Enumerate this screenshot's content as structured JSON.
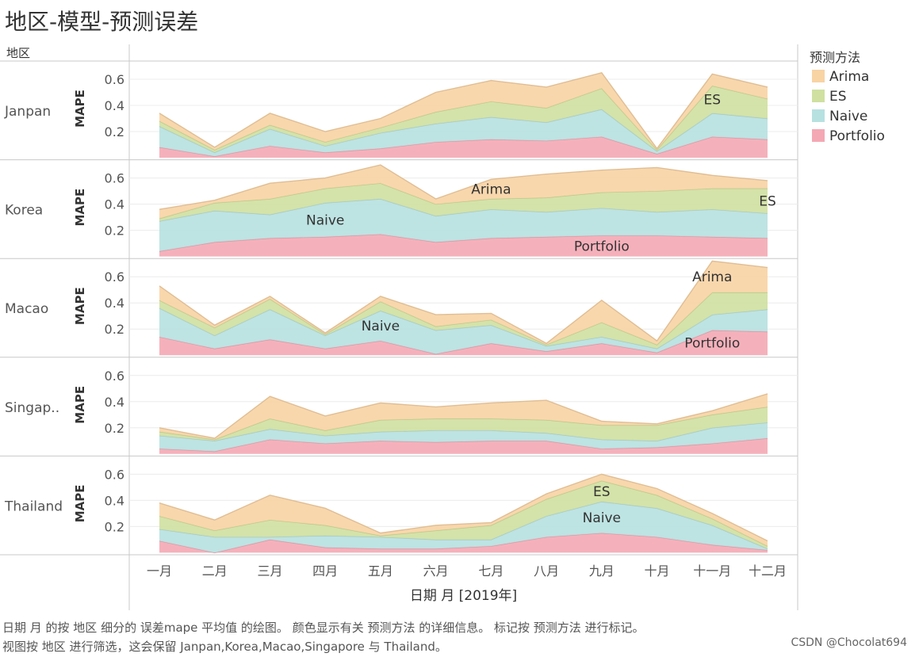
{
  "title": "地区-模型-预测误差",
  "caption": {
    "line1": "日期 月 的按 地区 细分的 误差mape 平均值 的绘图。 颜色显示有关 预测方法 的详细信息。 标记按 预测方法 进行标记。",
    "line2": "视图按 地区 进行筛选，这会保留 Janpan,Korea,Macao,Singapore 与 Thailand。"
  },
  "watermark": "CSDN @Chocolat694",
  "chart_data": {
    "type": "area",
    "stacked": true,
    "row_header": "地区",
    "ylabel": "MAPE",
    "xlabel": "日期 月 [2019年]",
    "ylim": [
      0,
      0.7
    ],
    "yticks": [
      0.2,
      0.4,
      0.6
    ],
    "grid": true,
    "categories": [
      "一月",
      "二月",
      "三月",
      "四月",
      "五月",
      "六月",
      "七月",
      "八月",
      "九月",
      "十月",
      "十一月",
      "十二月"
    ],
    "legend": {
      "title": "预测方法",
      "position": "right",
      "items": [
        {
          "name": "Arima",
          "color": "#f8d3a4"
        },
        {
          "name": "ES",
          "color": "#cfe0a0"
        },
        {
          "name": "Naive",
          "color": "#b7e0e0"
        },
        {
          "name": "Portfolio",
          "color": "#f4a8b4"
        }
      ]
    },
    "panels": [
      {
        "region": "Janpan",
        "series": [
          {
            "name": "Portfolio",
            "values": [
              0.08,
              0.01,
              0.09,
              0.04,
              0.07,
              0.12,
              0.14,
              0.13,
              0.16,
              0.03,
              0.16,
              0.14
            ]
          },
          {
            "name": "Naive",
            "values": [
              0.16,
              0.03,
              0.13,
              0.05,
              0.12,
              0.14,
              0.17,
              0.14,
              0.21,
              0.02,
              0.18,
              0.16
            ]
          },
          {
            "name": "ES",
            "values": [
              0.04,
              0.02,
              0.03,
              0.03,
              0.04,
              0.09,
              0.12,
              0.11,
              0.16,
              0.01,
              0.21,
              0.15
            ]
          },
          {
            "name": "Arima",
            "values": [
              0.06,
              0.02,
              0.09,
              0.08,
              0.07,
              0.15,
              0.16,
              0.16,
              0.12,
              0.01,
              0.09,
              0.09
            ]
          }
        ],
        "labels": [
          {
            "text": "ES",
            "series": "ES",
            "category": "十一月"
          }
        ]
      },
      {
        "region": "Korea",
        "series": [
          {
            "name": "Portfolio",
            "values": [
              0.04,
              0.11,
              0.14,
              0.15,
              0.17,
              0.11,
              0.14,
              0.15,
              0.16,
              0.16,
              0.15,
              0.14
            ]
          },
          {
            "name": "Naive",
            "values": [
              0.23,
              0.24,
              0.18,
              0.26,
              0.27,
              0.2,
              0.22,
              0.19,
              0.21,
              0.18,
              0.21,
              0.19
            ]
          },
          {
            "name": "ES",
            "values": [
              0.02,
              0.06,
              0.12,
              0.11,
              0.12,
              0.09,
              0.08,
              0.11,
              0.12,
              0.16,
              0.16,
              0.19
            ]
          },
          {
            "name": "Arima",
            "values": [
              0.07,
              0.02,
              0.12,
              0.08,
              0.14,
              0.04,
              0.15,
              0.18,
              0.17,
              0.18,
              0.1,
              0.06
            ]
          }
        ],
        "labels": [
          {
            "text": "Arima",
            "series": "Arima",
            "category": "七月"
          },
          {
            "text": "ES",
            "series": "ES",
            "category": "十二月"
          },
          {
            "text": "Naive",
            "series": "Naive",
            "category": "四月"
          },
          {
            "text": "Portfolio",
            "series": "Portfolio",
            "category": "九月"
          }
        ]
      },
      {
        "region": "Macao",
        "series": [
          {
            "name": "Portfolio",
            "values": [
              0.14,
              0.05,
              0.12,
              0.05,
              0.11,
              0.01,
              0.09,
              0.03,
              0.09,
              0.02,
              0.19,
              0.18
            ]
          },
          {
            "name": "Naive",
            "values": [
              0.22,
              0.1,
              0.23,
              0.1,
              0.23,
              0.18,
              0.14,
              0.04,
              0.05,
              0.03,
              0.12,
              0.17
            ]
          },
          {
            "name": "ES",
            "values": [
              0.06,
              0.06,
              0.08,
              0.01,
              0.07,
              0.03,
              0.04,
              0.01,
              0.11,
              0.03,
              0.17,
              0.13
            ]
          },
          {
            "name": "Arima",
            "values": [
              0.11,
              0.02,
              0.02,
              0.01,
              0.04,
              0.09,
              0.05,
              0.01,
              0.17,
              0.03,
              0.24,
              0.19
            ]
          }
        ],
        "labels": [
          {
            "text": "Naive",
            "series": "Naive",
            "category": "五月"
          },
          {
            "text": "Arima",
            "series": "Arima",
            "category": "十一月"
          },
          {
            "text": "Portfolio",
            "series": "Portfolio",
            "category": "十一月"
          }
        ]
      },
      {
        "region": "Singap..",
        "series": [
          {
            "name": "Portfolio",
            "values": [
              0.04,
              0.02,
              0.11,
              0.08,
              0.1,
              0.09,
              0.1,
              0.1,
              0.04,
              0.05,
              0.08,
              0.12
            ]
          },
          {
            "name": "Naive",
            "values": [
              0.1,
              0.08,
              0.08,
              0.06,
              0.07,
              0.09,
              0.08,
              0.06,
              0.07,
              0.05,
              0.12,
              0.12
            ]
          },
          {
            "name": "ES",
            "values": [
              0.03,
              0.01,
              0.08,
              0.04,
              0.09,
              0.09,
              0.09,
              0.1,
              0.11,
              0.12,
              0.1,
              0.12
            ]
          },
          {
            "name": "Arima",
            "values": [
              0.03,
              0.01,
              0.17,
              0.11,
              0.13,
              0.09,
              0.12,
              0.15,
              0.03,
              0.01,
              0.03,
              0.1
            ]
          }
        ],
        "labels": []
      },
      {
        "region": "Thailand",
        "series": [
          {
            "name": "Portfolio",
            "values": [
              0.09,
              0.0,
              0.1,
              0.04,
              0.03,
              0.03,
              0.05,
              0.12,
              0.15,
              0.12,
              0.06,
              0.02
            ]
          },
          {
            "name": "Naive",
            "values": [
              0.09,
              0.12,
              0.02,
              0.09,
              0.09,
              0.07,
              0.05,
              0.16,
              0.24,
              0.22,
              0.15,
              0.01
            ]
          },
          {
            "name": "ES",
            "values": [
              0.1,
              0.05,
              0.13,
              0.08,
              0.01,
              0.07,
              0.11,
              0.13,
              0.16,
              0.1,
              0.05,
              0.02
            ]
          },
          {
            "name": "Arima",
            "values": [
              0.1,
              0.08,
              0.19,
              0.13,
              0.02,
              0.04,
              0.02,
              0.04,
              0.05,
              0.05,
              0.04,
              0.04
            ]
          }
        ],
        "labels": [
          {
            "text": "ES",
            "series": "ES",
            "category": "九月"
          },
          {
            "text": "Naive",
            "series": "Naive",
            "category": "九月"
          }
        ]
      }
    ]
  }
}
